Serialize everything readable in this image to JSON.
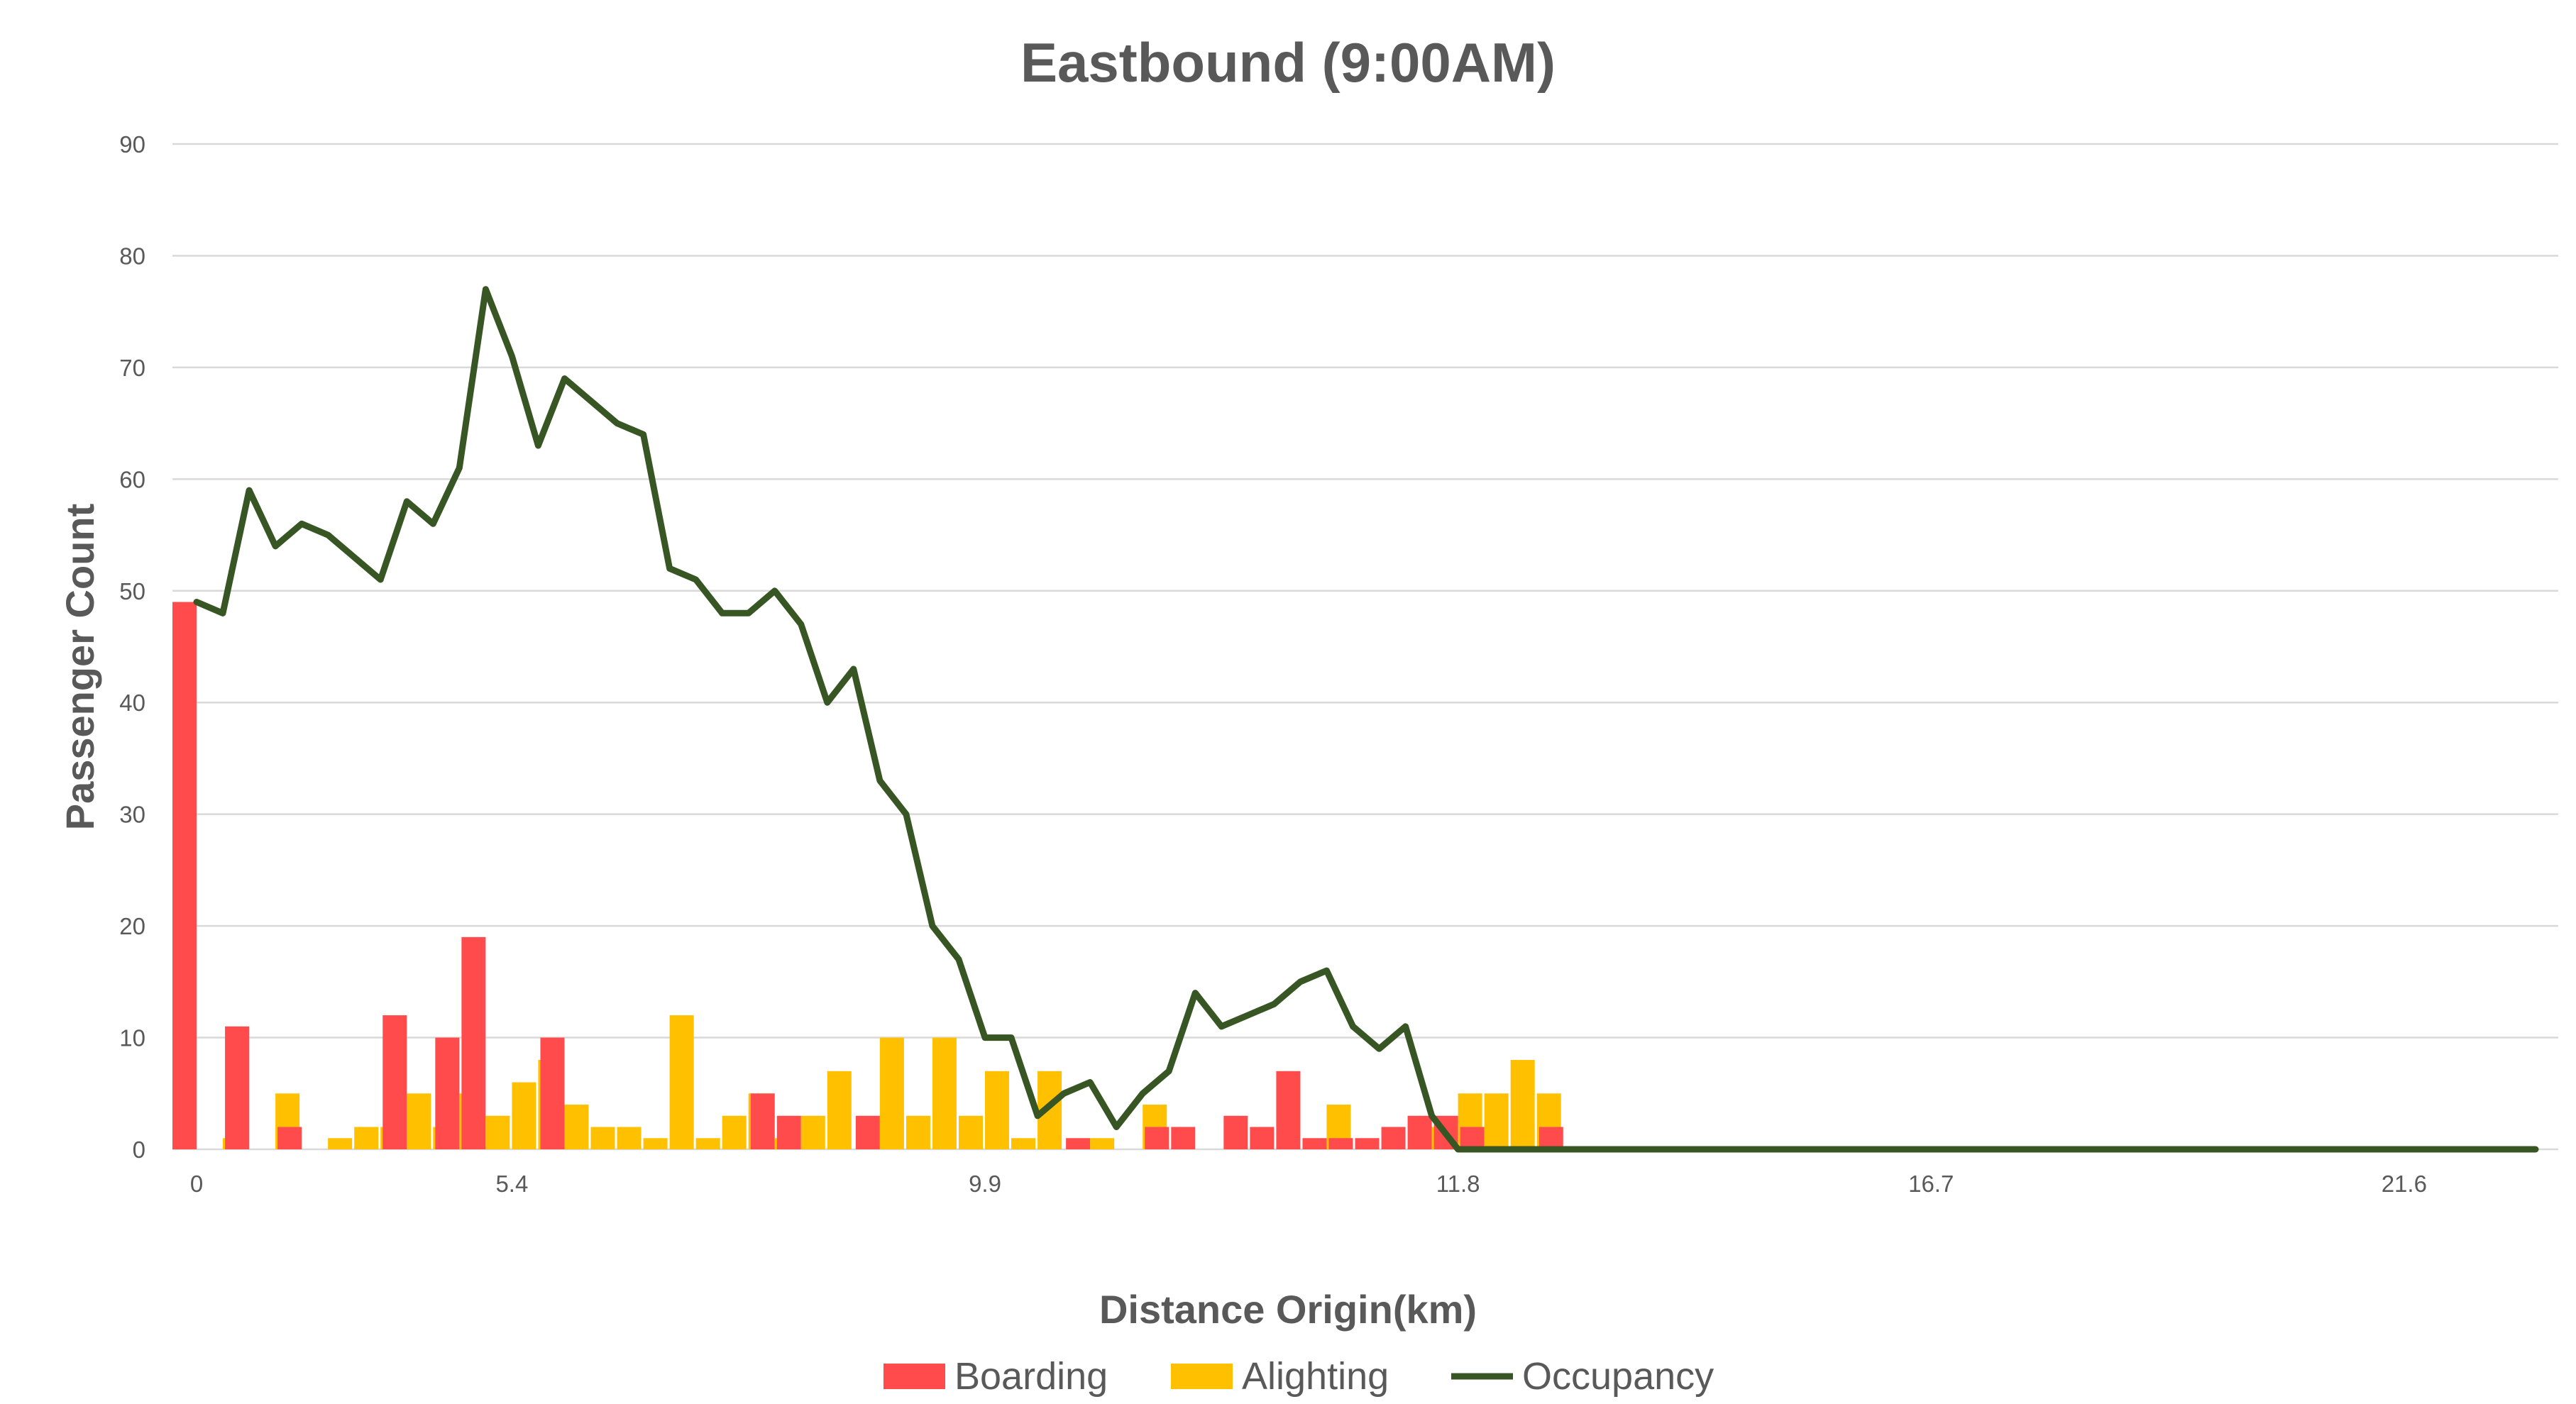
{
  "chart_data": {
    "type": "bar",
    "title": "Eastbound (9:00AM)",
    "xlabel": "Distance Origin(km)",
    "ylabel": "Passenger Count",
    "ylim": [
      0,
      90
    ],
    "y_ticks": [
      "0",
      "10",
      "20",
      "30",
      "40",
      "50",
      "60",
      "70",
      "80",
      "90"
    ],
    "grid": true,
    "legend_position": "bottom",
    "categories": [
      "0",
      "",
      "",
      "",
      "",
      "",
      "",
      "",
      "",
      "",
      "",
      "",
      "5.4",
      "",
      "",
      "",
      "",
      "",
      "",
      "",
      "",
      "",
      "",
      "",
      "",
      "",
      "",
      "",
      "",
      "",
      "9.9",
      "",
      "",
      "",
      "",
      "",
      "",
      "",
      "",
      "",
      "",
      "",
      "",
      "",
      "",
      "",
      "",
      "",
      "11.8",
      "",
      "",
      "",
      "",
      "",
      "",
      "",
      "",
      "",
      "",
      "",
      "",
      "",
      "",
      "",
      "",
      "",
      "16.7",
      "",
      "",
      "",
      "",
      "",
      "",
      "",
      "",
      "",
      "",
      "",
      "",
      "",
      "",
      "",
      "",
      "",
      "21.6",
      "",
      "",
      "",
      "",
      ""
    ],
    "visible_x_ticks": [
      "0",
      "5.4",
      "9.9",
      "11.8",
      "16.7",
      "21.6"
    ],
    "series": [
      {
        "name": "Boarding",
        "kind": "bar",
        "color": "#ff4b4b",
        "values": [
          49,
          0,
          11,
          0,
          2,
          0,
          0,
          0,
          12,
          0,
          10,
          19,
          0,
          0,
          10,
          0,
          0,
          0,
          0,
          0,
          0,
          0,
          5,
          3,
          0,
          0,
          3,
          0,
          0,
          0,
          0,
          0,
          0,
          0,
          1,
          0,
          0,
          2,
          2,
          0,
          3,
          2,
          7,
          1,
          1,
          1,
          2,
          3,
          3,
          2,
          0,
          0,
          2,
          0,
          0,
          0,
          0,
          0,
          0,
          0,
          0,
          0,
          0,
          0,
          0,
          0,
          0,
          0,
          0,
          0,
          0,
          0,
          0,
          0,
          0,
          0,
          0,
          0,
          0,
          0,
          0,
          0,
          0,
          0,
          0,
          0,
          0,
          0,
          0,
          0
        ]
      },
      {
        "name": "Alighting",
        "kind": "bar",
        "color": "#ffc000",
        "values": [
          0,
          1,
          0,
          5,
          0,
          1,
          2,
          2,
          5,
          2,
          5,
          3,
          6,
          8,
          4,
          2,
          2,
          1,
          12,
          1,
          3,
          5,
          1,
          3,
          7,
          0,
          10,
          3,
          10,
          3,
          7,
          1,
          7,
          0,
          1,
          0,
          4,
          0,
          0,
          0,
          0,
          0,
          0,
          4,
          0,
          0,
          0,
          2,
          5,
          5,
          8,
          5,
          0,
          0,
          0,
          0,
          0,
          0,
          0,
          0,
          0,
          0,
          0,
          0,
          0,
          0,
          0,
          0,
          0,
          0,
          0,
          0,
          0,
          0,
          0,
          0,
          0,
          0,
          0,
          0,
          0,
          0,
          0,
          0,
          0,
          0,
          0,
          0,
          0,
          0
        ]
      },
      {
        "name": "Occupancy",
        "kind": "line",
        "color": "#375623",
        "values": [
          49,
          48,
          59,
          54,
          56,
          55,
          53,
          51,
          58,
          56,
          61,
          77,
          71,
          63,
          69,
          67,
          65,
          64,
          52,
          51,
          48,
          48,
          50,
          47,
          40,
          43,
          33,
          30,
          20,
          17,
          10,
          10,
          3,
          5,
          6,
          2,
          5,
          7,
          14,
          11,
          12,
          13,
          15,
          16,
          11,
          9,
          11,
          3,
          0,
          0,
          0,
          0,
          0,
          0,
          0,
          0,
          0,
          0,
          0,
          0,
          0,
          0,
          0,
          0,
          0,
          0,
          0,
          0,
          0,
          0,
          0,
          0,
          0,
          0,
          0,
          0,
          0,
          0,
          0,
          0,
          0,
          0,
          0,
          0,
          0,
          0,
          0,
          0,
          0,
          0
        ]
      }
    ]
  }
}
